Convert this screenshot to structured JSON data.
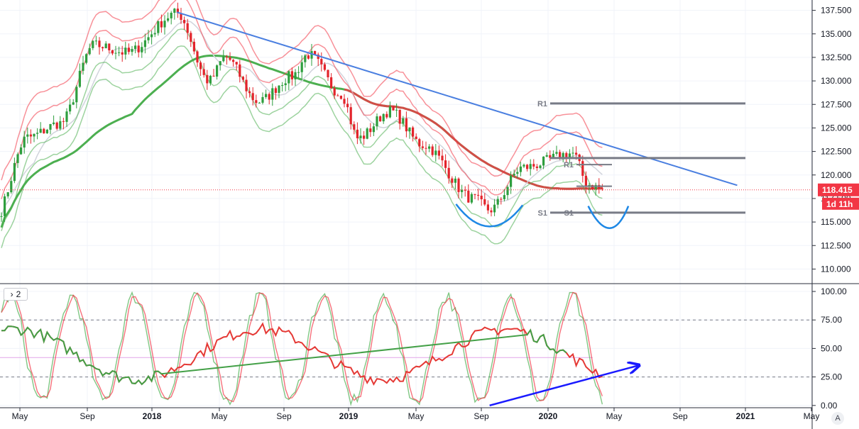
{
  "chart_data": [
    {
      "type": "candlestick",
      "price_axis": {
        "ylim": [
          108.6,
          138.6
        ],
        "ticks": [
          "137.500",
          "135.000",
          "132.500",
          "130.000",
          "127.500",
          "125.000",
          "122.500",
          "120.000",
          "117.500",
          "115.000",
          "112.500",
          "110.000"
        ]
      },
      "time_axis": {
        "labels": [
          "May",
          "Sep",
          "2018",
          "May",
          "Sep",
          "2019",
          "May",
          "Sep",
          "2020",
          "May",
          "Sep",
          "2021",
          "May"
        ]
      },
      "last_price": {
        "value": 118.415,
        "label": "118.415",
        "countdown": "1d 11h",
        "color": "#f23645"
      },
      "grid": true,
      "key_prices": [
        {
          "x": "2017-02",
          "y": 118.0
        },
        {
          "x": "2017-03",
          "y": 115.2
        },
        {
          "x": "2017-05",
          "y": 124.0
        },
        {
          "x": "2017-07",
          "y": 125.5
        },
        {
          "x": "2017-09",
          "y": 133.8
        },
        {
          "x": "2017-11",
          "y": 133.0
        },
        {
          "x": "2018-02",
          "y": 137.2
        },
        {
          "x": "2018-04",
          "y": 130.0
        },
        {
          "x": "2018-05",
          "y": 132.5
        },
        {
          "x": "2018-07",
          "y": 127.8
        },
        {
          "x": "2018-09",
          "y": 130.5
        },
        {
          "x": "2018-10",
          "y": 132.8
        },
        {
          "x": "2018-12",
          "y": 128.6
        },
        {
          "x": "2019-01",
          "y": 123.9
        },
        {
          "x": "2019-03",
          "y": 126.8
        },
        {
          "x": "2019-05",
          "y": 123.2
        },
        {
          "x": "2019-08",
          "y": 117.5
        },
        {
          "x": "2019-09",
          "y": 116.3
        },
        {
          "x": "2019-11",
          "y": 120.8
        },
        {
          "x": "2020-02",
          "y": 122.3
        },
        {
          "x": "2020-03",
          "y": 119.0
        },
        {
          "x": "2020-04",
          "y": 118.4
        }
      ],
      "trendline": {
        "from": {
          "x": "2018-02",
          "y": 137.3
        },
        "to": {
          "x": "2020-12",
          "y": 118.9
        },
        "color": "#4a7fe0"
      },
      "pivot_levels": [
        {
          "label": "R1",
          "y": 127.6
        },
        {
          "label": "",
          "y": 121.8
        },
        {
          "label": "R1",
          "y": 121.1
        },
        {
          "label": "",
          "y": 118.8
        },
        {
          "label": "S1",
          "y": 116.0
        },
        {
          "label": "S1",
          "y": 116.0
        }
      ]
    },
    {
      "type": "line",
      "pane_label": "2",
      "ylim": [
        -2,
        105
      ],
      "ticks": [
        "100.00",
        "75.00",
        "50.00",
        "25.00",
        "0.00"
      ],
      "levels": [
        75,
        25
      ],
      "midline": 42,
      "trend_arrow": {
        "from": {
          "x": "2019-09",
          "y": 0
        },
        "to": {
          "x": "2020-06",
          "y": 35
        },
        "color": "#1a1aff"
      }
    }
  ]
}
